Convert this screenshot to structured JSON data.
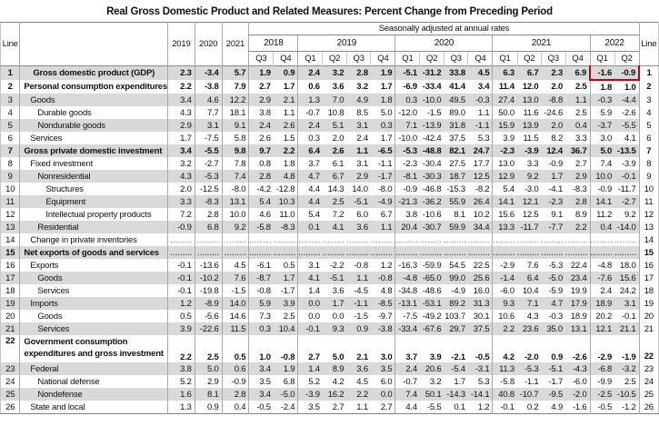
{
  "title": "Real Gross Domestic Product and Related Measures: Percent Change from Preceding Period",
  "header": {
    "line_label": "Line",
    "saar_label": "Seasonally adjusted at annual rates",
    "annual_years": [
      "2019",
      "2020",
      "2021"
    ],
    "quarter_groups": [
      {
        "year": "2018",
        "quarters": [
          "Q3",
          "Q4"
        ]
      },
      {
        "year": "2019",
        "quarters": [
          "Q1",
          "Q2",
          "Q3",
          "Q4"
        ]
      },
      {
        "year": "2020",
        "quarters": [
          "Q1",
          "Q2",
          "Q3",
          "Q4"
        ]
      },
      {
        "year": "2021",
        "quarters": [
          "Q1",
          "Q2",
          "Q3",
          "Q4"
        ]
      },
      {
        "year": "2022",
        "quarters": [
          "Q1",
          "Q2"
        ]
      }
    ]
  },
  "highlight": {
    "line": 1,
    "columns": [
      "2022 Q1",
      "2022 Q2"
    ],
    "values": [
      "-1.6",
      "-0.9"
    ],
    "color": "#cc0000"
  },
  "colors": {
    "row_shade": "#d9d9d9",
    "highlight_box": "#cc0000",
    "grid_line": "#8a8a8a"
  },
  "chart_data": {
    "type": "table",
    "title": "Real Gross Domestic Product and Related Measures: Percent Change from Preceding Period",
    "columns": [
      "2019",
      "2020",
      "2021",
      "2018 Q3",
      "2018 Q4",
      "2019 Q1",
      "2019 Q2",
      "2019 Q3",
      "2019 Q4",
      "2020 Q1",
      "2020 Q2",
      "2020 Q3",
      "2020 Q4",
      "2021 Q1",
      "2021 Q2",
      "2021 Q3",
      "2021 Q4",
      "2022 Q1",
      "2022 Q2"
    ],
    "rows": [
      {
        "line": 1,
        "label": "Gross domestic product (GDP)",
        "indent": 0,
        "bold": true,
        "center": true,
        "shaded": true,
        "highlight": true,
        "values": [
          "2.3",
          "-3.4",
          "5.7",
          "1.9",
          "0.9",
          "2.4",
          "3.2",
          "2.8",
          "1.9",
          "-5.1",
          "-31.2",
          "33.8",
          "4.5",
          "6.3",
          "6.7",
          "2.3",
          "6.9",
          "-1.6",
          "-0.9"
        ]
      },
      {
        "line": 2,
        "label": "Personal consumption expenditures",
        "indent": 0,
        "bold": true,
        "shaded": false,
        "values": [
          "2.2",
          "-3.8",
          "7.9",
          "2.7",
          "1.7",
          "0.6",
          "3.6",
          "3.2",
          "1.7",
          "-6.9",
          "-33.4",
          "41.4",
          "3.4",
          "11.4",
          "12.0",
          "2.0",
          "2.5",
          "1.8",
          "1.0"
        ]
      },
      {
        "line": 3,
        "label": "Goods",
        "indent": 1,
        "bold": false,
        "shaded": true,
        "values": [
          "3.4",
          "4.6",
          "12.2",
          "2.9",
          "2.1",
          "1.3",
          "7.0",
          "4.9",
          "1.8",
          "0.3",
          "-10.0",
          "49.5",
          "-0.3",
          "27.4",
          "13.0",
          "-8.8",
          "1.1",
          "-0.3",
          "-4.4"
        ]
      },
      {
        "line": 4,
        "label": "Durable goods",
        "indent": 2,
        "bold": false,
        "shaded": false,
        "values": [
          "4.3",
          "7.7",
          "18.1",
          "3.8",
          "1.1",
          "-0.7",
          "10.8",
          "8.5",
          "5.0",
          "-12.0",
          "-1.5",
          "89.0",
          "1.1",
          "50.0",
          "11.6",
          "-24.6",
          "2.5",
          "5.9",
          "-2.6"
        ]
      },
      {
        "line": 5,
        "label": "Nondurable goods",
        "indent": 2,
        "bold": false,
        "shaded": true,
        "values": [
          "2.9",
          "3.1",
          "9.1",
          "2.4",
          "2.6",
          "2.4",
          "5.1",
          "3.1",
          "0.3",
          "7.1",
          "-13.9",
          "31.8",
          "-1.1",
          "15.9",
          "13.9",
          "2.0",
          "0.4",
          "-3.7",
          "-5.5"
        ]
      },
      {
        "line": 6,
        "label": "Services",
        "indent": 1,
        "bold": false,
        "shaded": false,
        "values": [
          "1.7",
          "-7.5",
          "5.8",
          "2.6",
          "1.5",
          "0.3",
          "2.0",
          "2.4",
          "1.7",
          "-10.0",
          "-42.4",
          "37.5",
          "5.3",
          "3.9",
          "11.5",
          "8.2",
          "3.3",
          "3.0",
          "4.1"
        ]
      },
      {
        "line": 7,
        "label": "Gross private domestic investment",
        "indent": 0,
        "bold": true,
        "shaded": true,
        "values": [
          "3.4",
          "-5.5",
          "9.8",
          "9.7",
          "2.2",
          "6.4",
          "2.6",
          "1.1",
          "-6.5",
          "-5.3",
          "-48.8",
          "82.1",
          "24.7",
          "-2.3",
          "-3.9",
          "12.4",
          "36.7",
          "5.0",
          "-13.5"
        ]
      },
      {
        "line": 8,
        "label": "Fixed investment",
        "indent": 1,
        "bold": false,
        "shaded": false,
        "values": [
          "3.2",
          "-2.7",
          "7.8",
          "0.8",
          "1.8",
          "3.7",
          "6.1",
          "3.1",
          "-1.1",
          "-2.3",
          "-30.4",
          "27.5",
          "17.7",
          "13.0",
          "3.3",
          "-0.9",
          "2.7",
          "7.4",
          "-3.9"
        ]
      },
      {
        "line": 9,
        "label": "Nonresidential",
        "indent": 2,
        "bold": false,
        "shaded": true,
        "values": [
          "4.3",
          "-5.3",
          "7.4",
          "2.8",
          "4.8",
          "4.7",
          "6.7",
          "2.9",
          "-1.7",
          "-8.1",
          "-30.3",
          "18.7",
          "12.5",
          "12.9",
          "9.2",
          "1.7",
          "2.9",
          "10.0",
          "-0.1"
        ]
      },
      {
        "line": 10,
        "label": "Structures",
        "indent": 3,
        "bold": false,
        "shaded": false,
        "values": [
          "2.0",
          "-12.5",
          "-8.0",
          "-4.2",
          "-12.8",
          "4.4",
          "14.3",
          "14.0",
          "-8.0",
          "-0.9",
          "-46.8",
          "-15.3",
          "-8.2",
          "5.4",
          "-3.0",
          "-4.1",
          "-8.3",
          "-0.9",
          "-11.7"
        ]
      },
      {
        "line": 11,
        "label": "Equipment",
        "indent": 3,
        "bold": false,
        "shaded": true,
        "values": [
          "3.3",
          "-8.3",
          "13.1",
          "5.4",
          "10.3",
          "4.4",
          "2.5",
          "-5.1",
          "-4.9",
          "-21.3",
          "-36.2",
          "55.9",
          "26.4",
          "14.1",
          "12.1",
          "-2.3",
          "2.8",
          "14.1",
          "-2.7"
        ]
      },
      {
        "line": 12,
        "label": "Intellectual property products",
        "indent": 3,
        "bold": false,
        "shaded": false,
        "values": [
          "7.2",
          "2.8",
          "10.0",
          "4.6",
          "11.0",
          "5.4",
          "7.2",
          "6.0",
          "6.7",
          "3.8",
          "-10.6",
          "8.1",
          "10.2",
          "15.6",
          "12.5",
          "9.1",
          "8.9",
          "11.2",
          "9.2"
        ]
      },
      {
        "line": 13,
        "label": "Residential",
        "indent": 2,
        "bold": false,
        "shaded": true,
        "values": [
          "-0.9",
          "6.8",
          "9.2",
          "-5.8",
          "-8.3",
          "0.1",
          "4.1",
          "3.6",
          "1.1",
          "20.4",
          "-30.7",
          "59.9",
          "34.4",
          "13.3",
          "-11.7",
          "-7.7",
          "2.2",
          "0.4",
          "-14.0"
        ]
      },
      {
        "line": 14,
        "label": "Change in private inventories",
        "indent": 1,
        "bold": false,
        "shaded": false,
        "values": [
          ".........",
          ".........",
          ".........",
          ".........",
          ".........",
          ".........",
          ".........",
          ".........",
          ".........",
          ".........",
          ".........",
          ".........",
          ".........",
          ".........",
          ".........",
          ".........",
          ".........",
          ".........",
          "........."
        ]
      },
      {
        "line": 15,
        "label": "Net exports of goods and services",
        "indent": 0,
        "bold": true,
        "shaded": true,
        "values": [
          ".........",
          ".........",
          ".........",
          ".........",
          ".........",
          ".........",
          ".........",
          ".........",
          ".........",
          ".........",
          ".........",
          ".........",
          ".........",
          ".........",
          ".........",
          ".........",
          ".........",
          ".........",
          "........."
        ]
      },
      {
        "line": 16,
        "label": "Exports",
        "indent": 1,
        "bold": false,
        "shaded": false,
        "values": [
          "-0.1",
          "-13.6",
          "4.5",
          "-6.1",
          "0.5",
          "3.1",
          "-2.2",
          "-0.8",
          "1.2",
          "-16.3",
          "-59.9",
          "54.5",
          "22.5",
          "-2.9",
          "7.6",
          "-5.3",
          "22.4",
          "-4.8",
          "18.0"
        ]
      },
      {
        "line": 17,
        "label": "Goods",
        "indent": 2,
        "bold": false,
        "shaded": true,
        "values": [
          "-0.1",
          "-10.2",
          "7.6",
          "-8.7",
          "1.7",
          "4.1",
          "-5.1",
          "1.1",
          "-0.8",
          "-4.8",
          "-65.0",
          "99.0",
          "25.6",
          "-1.4",
          "6.4",
          "-5.0",
          "23.4",
          "-7.6",
          "15.6"
        ]
      },
      {
        "line": 18,
        "label": "Services",
        "indent": 2,
        "bold": false,
        "shaded": false,
        "values": [
          "-0.1",
          "-19.8",
          "-1.5",
          "-0.8",
          "-1.7",
          "1.4",
          "3.6",
          "-4.5",
          "4.8",
          "-34.8",
          "-48.6",
          "-4.9",
          "16.0",
          "-6.0",
          "10.4",
          "-5.9",
          "19.9",
          "2.4",
          "24.2"
        ]
      },
      {
        "line": 19,
        "label": "Imports",
        "indent": 1,
        "bold": false,
        "shaded": true,
        "values": [
          "1.2",
          "-8.9",
          "14.0",
          "5.9",
          "3.9",
          "0.0",
          "1.7",
          "-1.1",
          "-8.5",
          "-13.1",
          "-53.1",
          "89.2",
          "31.3",
          "9.3",
          "7.1",
          "4.7",
          "17.9",
          "18.9",
          "3.1"
        ]
      },
      {
        "line": 20,
        "label": "Goods",
        "indent": 2,
        "bold": false,
        "shaded": false,
        "values": [
          "0.5",
          "-5.6",
          "14.6",
          "7.3",
          "2.5",
          "0.0",
          "0.0",
          "-1.5",
          "-9.7",
          "-7.5",
          "-49.2",
          "103.7",
          "30.1",
          "10.6",
          "4.3",
          "-0.3",
          "18.9",
          "20.2",
          "-0.1"
        ]
      },
      {
        "line": 21,
        "label": "Services",
        "indent": 2,
        "bold": false,
        "shaded": true,
        "values": [
          "3.9",
          "-22.6",
          "11.5",
          "0.3",
          "10.4",
          "-0.1",
          "9.3",
          "0.9",
          "-3.8",
          "-33.4",
          "-67.6",
          "29.7",
          "37.5",
          "2.2",
          "23.6",
          "35.0",
          "13.1",
          "12.1",
          "21.1"
        ]
      },
      {
        "line": 22,
        "label": "Government consumption\nexpenditures and gross investment",
        "indent": 0,
        "bold": true,
        "two_line": true,
        "shaded": false,
        "values": [
          "2.2",
          "2.5",
          "0.5",
          "1.0",
          "-0.8",
          "2.7",
          "5.0",
          "2.1",
          "3.0",
          "3.7",
          "3.9",
          "-2.1",
          "-0.5",
          "4.2",
          "-2.0",
          "0.9",
          "-2.6",
          "-2.9",
          "-1.9"
        ]
      },
      {
        "line": 23,
        "label": "Federal",
        "indent": 1,
        "bold": false,
        "shaded": true,
        "values": [
          "3.8",
          "5.0",
          "0.6",
          "3.4",
          "1.9",
          "1.4",
          "8.9",
          "3.6",
          "3.5",
          "2.4",
          "20.6",
          "-5.4",
          "-3.1",
          "11.3",
          "-5.3",
          "-5.1",
          "-4.3",
          "-6.8",
          "-3.2"
        ]
      },
      {
        "line": 24,
        "label": "National defense",
        "indent": 2,
        "bold": false,
        "shaded": false,
        "values": [
          "5.2",
          "2.9",
          "-0.9",
          "3.5",
          "6.8",
          "5.2",
          "4.2",
          "4.5",
          "6.0",
          "-0.7",
          "3.2",
          "1.7",
          "5.3",
          "-5.8",
          "-1.1",
          "-1.7",
          "-6.0",
          "-9.9",
          "2.5"
        ]
      },
      {
        "line": 25,
        "label": "Nondefense",
        "indent": 2,
        "bold": false,
        "shaded": true,
        "values": [
          "1.6",
          "8.1",
          "2.8",
          "3.4",
          "-5.0",
          "-3.9",
          "16.2",
          "2.2",
          "0.0",
          "7.4",
          "50.1",
          "-14.3",
          "-14.1",
          "40.8",
          "-10.7",
          "-9.5",
          "-2.0",
          "-2.5",
          "-10.5"
        ]
      },
      {
        "line": 26,
        "label": "State and local",
        "indent": 1,
        "bold": false,
        "shaded": false,
        "values": [
          "1.3",
          "0.9",
          "0.4",
          "-0.5",
          "-2.4",
          "3.5",
          "2.7",
          "1.1",
          "2.7",
          "4.4",
          "-5.5",
          "0.1",
          "1.2",
          "-0.1",
          "0.2",
          "4.9",
          "-1.6",
          "-0.5",
          "-1.2"
        ]
      }
    ]
  }
}
